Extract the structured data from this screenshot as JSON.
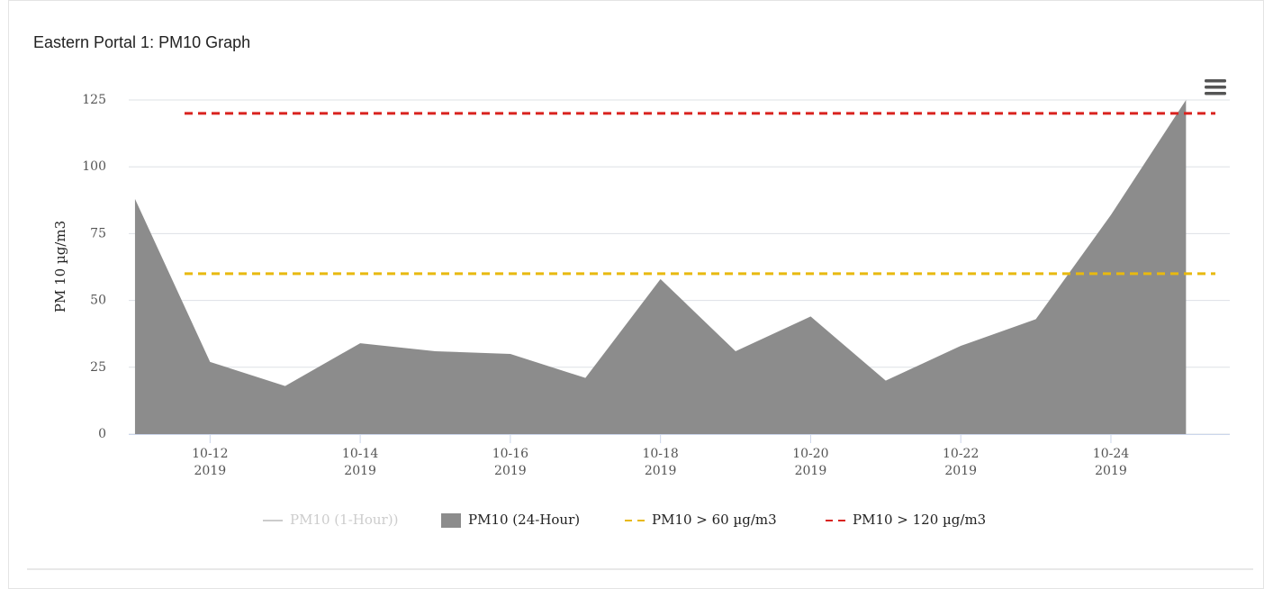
{
  "chart_data": {
    "type": "area",
    "title": "Eastern Portal 1: PM10 Graph",
    "y_label": "PM 10 µg/m3",
    "x": [
      "2019-10-11",
      "2019-10-12",
      "2019-10-13",
      "2019-10-14",
      "2019-10-15",
      "2019-10-16",
      "2019-10-17",
      "2019-10-18",
      "2019-10-19",
      "2019-10-20",
      "2019-10-21",
      "2019-10-22",
      "2019-10-23",
      "2019-10-24",
      "2019-10-25"
    ],
    "series": [
      {
        "name": "PM10 (1-Hour))",
        "color": "#cccccc",
        "hidden": true
      },
      {
        "name": "PM10 (24-Hour)",
        "color": "#8c8c8c",
        "values": [
          88,
          27,
          18,
          34,
          31,
          30,
          21,
          58,
          31,
          44,
          20,
          33,
          43,
          82,
          125
        ]
      },
      {
        "name": "PM10 > 60 µg/m3",
        "color": "#e8b90f",
        "threshold": 60,
        "dashed": true
      },
      {
        "name": "PM10 > 120 µg/m3",
        "color": "#d9231f",
        "threshold": 120,
        "dashed": true
      }
    ],
    "xlim": [
      "2019-10-10T22:00",
      "2019-10-25T14:00"
    ],
    "xticks": [
      {
        "value": "2019-10-12",
        "label": "10-12\n2019"
      },
      {
        "value": "2019-10-14",
        "label": "10-14\n2019"
      },
      {
        "value": "2019-10-16",
        "label": "10-16\n2019"
      },
      {
        "value": "2019-10-18",
        "label": "10-18\n2019"
      },
      {
        "value": "2019-10-20",
        "label": "10-20\n2019"
      },
      {
        "value": "2019-10-22",
        "label": "10-22\n2019"
      },
      {
        "value": "2019-10-24",
        "label": "10-24\n2019"
      }
    ],
    "ylim": [
      0,
      125
    ],
    "yticks": [
      0,
      25,
      50,
      75,
      100,
      125
    ],
    "grid": true,
    "legend": "bottom"
  }
}
